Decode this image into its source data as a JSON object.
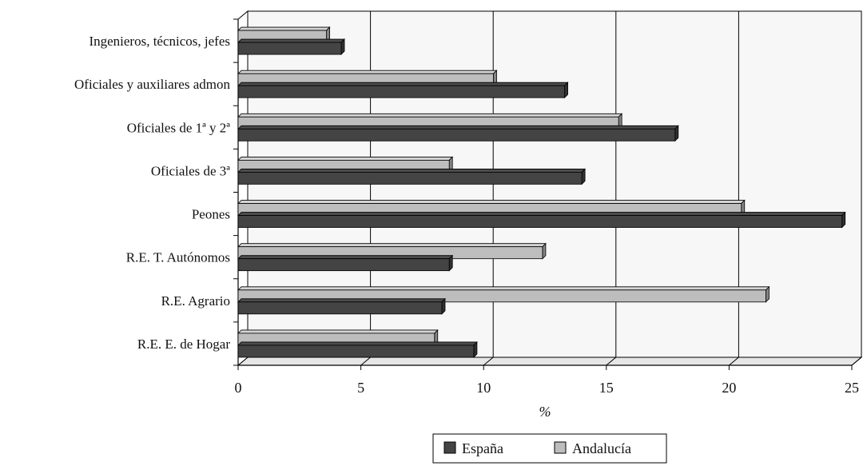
{
  "chart_data": {
    "type": "bar",
    "orientation": "horizontal",
    "style": "3d",
    "categories": [
      "Ingenieros, técnicos, jefes",
      "Oficiales y auxiliares admon",
      "Oficiales de 1ª y 2ª",
      "Oficiales de 3ª",
      "Peones",
      "R.E. T. Autónomos",
      "R.E. Agrario",
      "R.E. E. de Hogar"
    ],
    "series": [
      {
        "name": "España",
        "color": "#444444",
        "values": [
          4.2,
          13.3,
          17.8,
          14.0,
          24.6,
          8.6,
          8.3,
          9.6
        ]
      },
      {
        "name": "Andalucía",
        "color": "#bdbdbd",
        "values": [
          3.6,
          10.4,
          15.5,
          8.6,
          20.5,
          12.4,
          21.5,
          8.0
        ]
      }
    ],
    "xlim": [
      0,
      25
    ],
    "xticks": [
      0,
      5,
      10,
      15,
      20,
      25
    ],
    "xlabel": "%",
    "ylabel": "",
    "title": "",
    "grid": "vertical",
    "legend": {
      "position": "bottom"
    }
  }
}
